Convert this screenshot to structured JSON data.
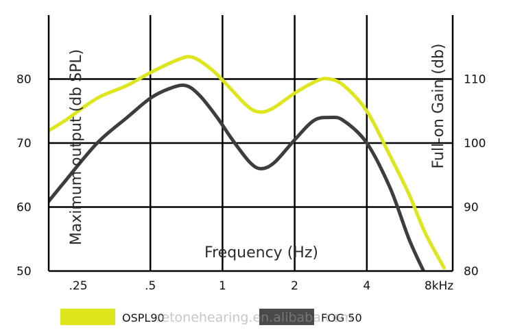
{
  "chart_data": {
    "type": "line",
    "xlabel": "Frequency  (Hz)",
    "ylabel_left": "Maximum output  (db SPL)",
    "ylabel_right": "Full-on Gain  (db)",
    "x_ticks": [
      {
        "label": ".25",
        "value": 0.25
      },
      {
        "label": ".5",
        "value": 0.5
      },
      {
        "label": "1",
        "value": 1
      },
      {
        "label": "2",
        "value": 2
      },
      {
        "label": "4",
        "value": 4
      },
      {
        "label": "8kHz",
        "value": 8
      }
    ],
    "x_scale": "log",
    "y_left_ticks": [
      50,
      60,
      70,
      80
    ],
    "y_right_ticks": [
      80,
      90,
      100,
      110
    ],
    "ylim_left": [
      50,
      90
    ],
    "ylim_right": [
      80,
      120
    ],
    "grid": true,
    "legend_position": "bottom",
    "series": [
      {
        "name": "OSPL90",
        "axis": "left",
        "color": "#dde61c",
        "points": [
          [
            0.18,
            71.5
          ],
          [
            0.22,
            73.5
          ],
          [
            0.3,
            77
          ],
          [
            0.4,
            79
          ],
          [
            0.5,
            81
          ],
          [
            0.65,
            83
          ],
          [
            0.75,
            83.4
          ],
          [
            0.9,
            81.5
          ],
          [
            1.05,
            79
          ],
          [
            1.25,
            76
          ],
          [
            1.4,
            74.9
          ],
          [
            1.6,
            75.3
          ],
          [
            2.0,
            77.8
          ],
          [
            2.5,
            79.8
          ],
          [
            2.8,
            80
          ],
          [
            3.2,
            79
          ],
          [
            4.0,
            75
          ],
          [
            5.0,
            68
          ],
          [
            6.0,
            62
          ],
          [
            7.0,
            56
          ],
          [
            8.4,
            50.5
          ]
        ]
      },
      {
        "name": "FOG 50",
        "axis": "right",
        "color": "#3d3d3d",
        "points": [
          [
            0.18,
            90
          ],
          [
            0.22,
            94
          ],
          [
            0.3,
            100
          ],
          [
            0.4,
            104
          ],
          [
            0.5,
            107
          ],
          [
            0.6,
            108.5
          ],
          [
            0.7,
            109
          ],
          [
            0.8,
            107.5
          ],
          [
            0.95,
            104
          ],
          [
            1.1,
            100.5
          ],
          [
            1.3,
            97
          ],
          [
            1.45,
            96
          ],
          [
            1.65,
            97
          ],
          [
            2.0,
            100.5
          ],
          [
            2.4,
            103.5
          ],
          [
            2.8,
            104
          ],
          [
            3.2,
            103.5
          ],
          [
            4.0,
            100
          ],
          [
            5.0,
            93
          ],
          [
            6.0,
            85
          ],
          [
            6.9,
            80
          ]
        ]
      }
    ]
  },
  "legend": [
    {
      "label": "OSPL90",
      "color": "#dde61c"
    },
    {
      "label": "FOG 50",
      "color": "#4a4a4a"
    }
  ],
  "watermark": "retonehearing.en.alibaba.com"
}
